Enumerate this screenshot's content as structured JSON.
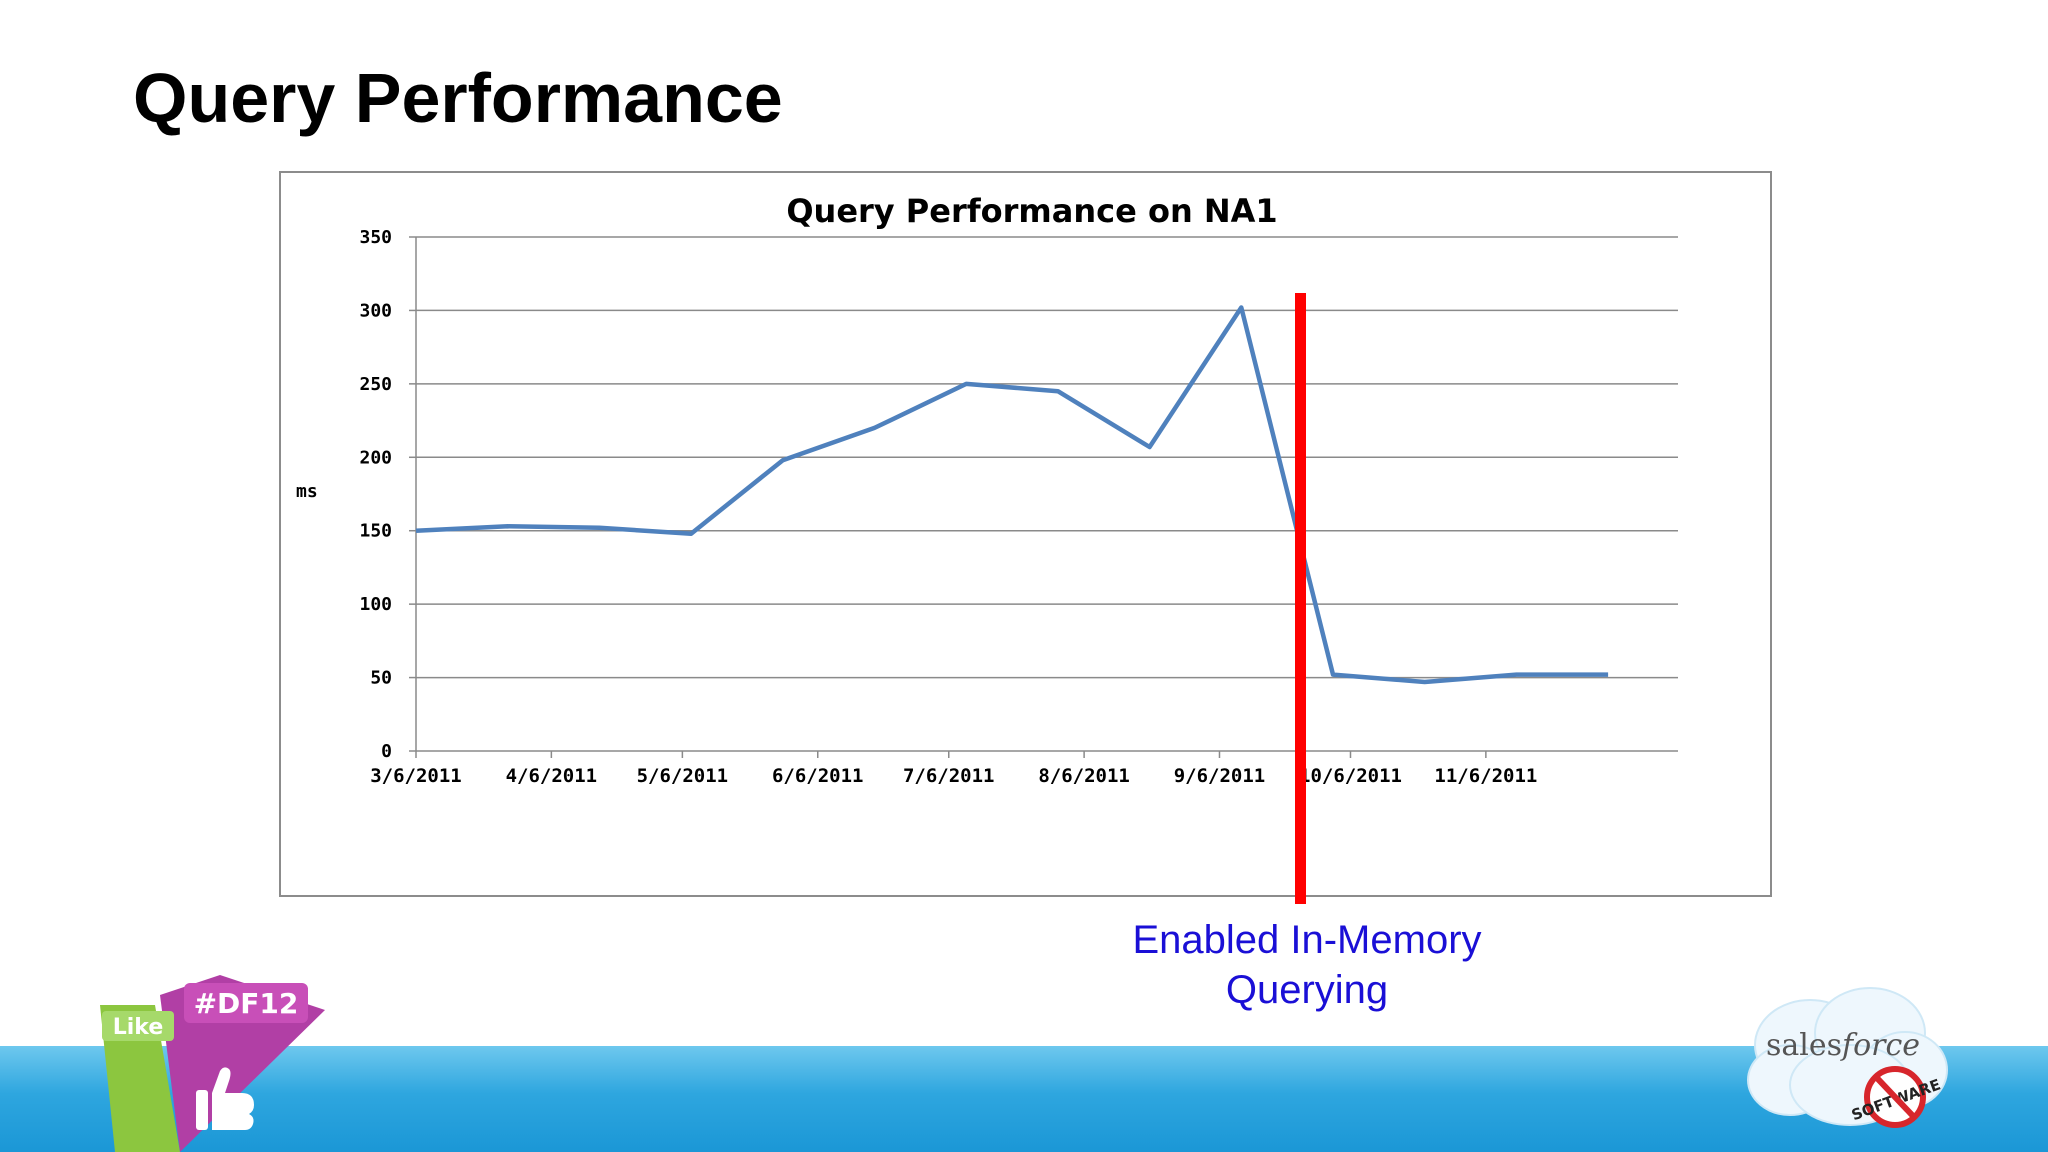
{
  "slide": {
    "title": "Query Performance",
    "annotation_line1": "Enabled In-Memory",
    "annotation_line2": "Querying"
  },
  "logos": {
    "df_like": "Like",
    "df_tag": "#DF12",
    "brand_text_1": "sales",
    "brand_text_2": "force",
    "stamp_text": "SOFTWARE"
  },
  "colors": {
    "series": "#4f81bd",
    "marker": "#ff0000",
    "annotation": "#1a0fd6",
    "footer": "#2ea6df"
  },
  "chart_data": {
    "type": "line",
    "title": "Query Performance on NA1",
    "xlabel": "",
    "ylabel": "ms",
    "ylim": [
      0,
      350
    ],
    "yticks": [
      0,
      50,
      100,
      150,
      200,
      250,
      300,
      350
    ],
    "grid": true,
    "x_tick_labels": [
      "3/6/2011",
      "4/6/2011",
      "5/6/2011",
      "6/6/2011",
      "7/6/2011",
      "8/6/2011",
      "9/6/2011",
      "10/6/2011",
      "11/6/2011"
    ],
    "x_tick_dates": [
      "2011-03-06",
      "2011-04-06",
      "2011-05-06",
      "2011-06-06",
      "2011-07-06",
      "2011-08-06",
      "2011-09-06",
      "2011-10-06",
      "2011-11-06"
    ],
    "xlim": [
      "2011-03-06",
      "2011-12-20"
    ],
    "series": [
      {
        "name": "",
        "x": [
          "2011-03-06",
          "2011-03-27",
          "2011-04-17",
          "2011-05-08",
          "2011-05-29",
          "2011-06-19",
          "2011-07-10",
          "2011-07-31",
          "2011-08-21",
          "2011-09-11",
          "2011-10-02",
          "2011-10-23",
          "2011-11-13",
          "2011-12-04"
        ],
        "y": [
          150,
          153,
          152,
          148,
          198,
          220,
          250,
          245,
          207,
          302,
          52,
          47,
          52,
          52
        ]
      }
    ],
    "annotations": [
      {
        "type": "vertical-line",
        "x": "2011-09-14"
      }
    ]
  }
}
